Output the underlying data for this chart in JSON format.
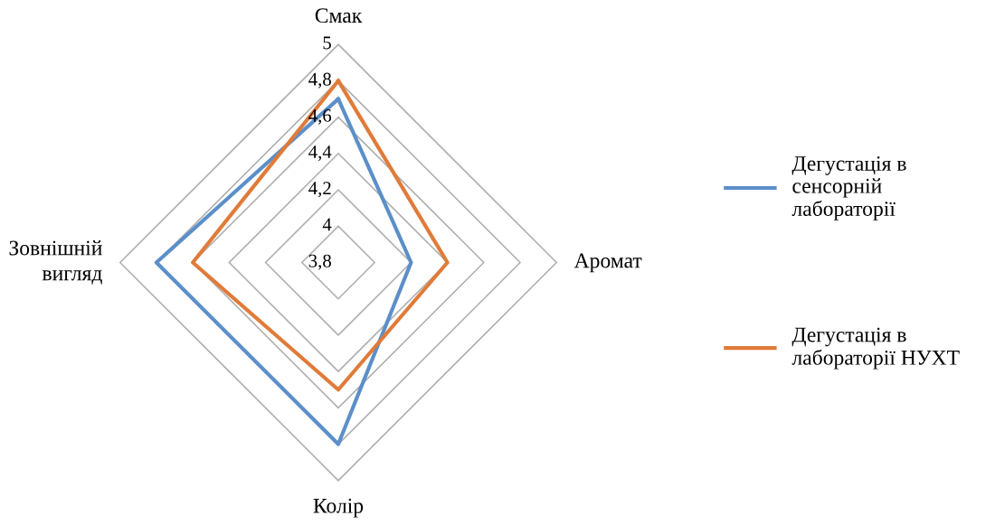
{
  "chart_data": {
    "type": "radar",
    "categories": [
      "Смак",
      "Аромат",
      "Колір",
      "Зовнішній вигляд"
    ],
    "series": [
      {
        "name": "Дегустація в сенсорній лабораторії",
        "color": "#5b8fc9",
        "values": [
          4.7,
          4.2,
          4.8,
          4.8
        ]
      },
      {
        "name": "Дегустація в лабораторії НУХТ",
        "color": "#e07b39",
        "values": [
          4.8,
          4.4,
          4.5,
          4.6
        ]
      }
    ],
    "ylim": [
      3.8,
      5
    ],
    "yticks": [
      {
        "value": 3.8,
        "label": "3,8"
      },
      {
        "value": 4,
        "label": "4"
      },
      {
        "value": 4.2,
        "label": "4,2"
      },
      {
        "value": 4.4,
        "label": "4,4"
      },
      {
        "value": 4.6,
        "label": "4,6"
      },
      {
        "value": 4.8,
        "label": "4,8"
      },
      {
        "value": 5,
        "label": "5"
      }
    ],
    "grid": true,
    "legend": "right"
  }
}
